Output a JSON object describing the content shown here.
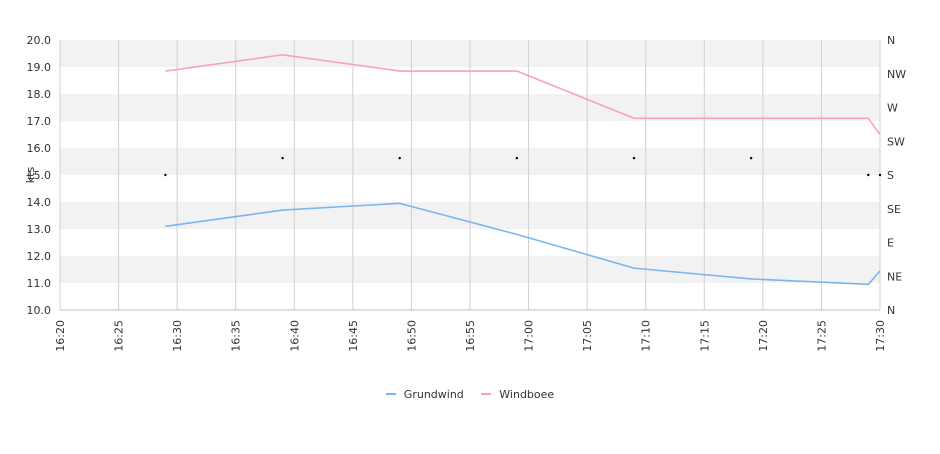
{
  "chart_data": {
    "type": "line",
    "title": "",
    "ylabel": "kts",
    "y2label": "",
    "ylim": [
      10.0,
      20.0
    ],
    "yticks": [
      "10.0",
      "11.0",
      "12.0",
      "13.0",
      "14.0",
      "15.0",
      "16.0",
      "17.0",
      "18.0",
      "19.0",
      "20.0"
    ],
    "xlim": [
      "16:20",
      "17:30"
    ],
    "xticks": [
      "16:20",
      "16:25",
      "16:30",
      "16:35",
      "16:40",
      "16:45",
      "16:50",
      "16:55",
      "17:00",
      "17:05",
      "17:10",
      "17:15",
      "17:20",
      "17:25",
      "17:30"
    ],
    "y2ticks": [
      "N",
      "NE",
      "E",
      "SE",
      "S",
      "SW",
      "W",
      "NW",
      "N"
    ],
    "grid": true,
    "legend_position": "bottom-center",
    "series": [
      {
        "name": "Grundwind",
        "color": "#7cb5ec",
        "x": [
          "16:29",
          "16:39",
          "16:49",
          "16:59",
          "17:09",
          "17:19",
          "17:29",
          "17:30"
        ],
        "values": [
          13.1,
          13.7,
          13.95,
          12.8,
          11.55,
          11.15,
          10.95,
          11.45
        ]
      },
      {
        "name": "Windboee",
        "color": "#f7a1c4",
        "x": [
          "16:29",
          "16:39",
          "16:49",
          "16:59",
          "17:09",
          "17:19",
          "17:29",
          "17:30"
        ],
        "values": [
          18.85,
          19.45,
          18.85,
          18.85,
          17.1,
          17.1,
          17.1,
          16.5
        ]
      }
    ],
    "direction_markers": {
      "x": [
        "16:29",
        "16:39",
        "16:49",
        "16:59",
        "17:09",
        "17:19",
        "17:29",
        "17:30"
      ],
      "direction": [
        "S",
        "SSW",
        "SSW",
        "SSW",
        "SSW",
        "SSW",
        "S",
        "S"
      ]
    }
  }
}
